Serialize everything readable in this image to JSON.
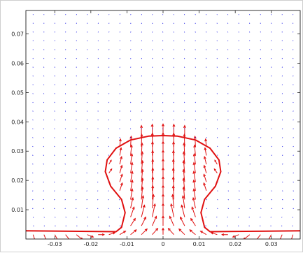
{
  "chart_data": {
    "type": "vector-field",
    "title": "",
    "xlabel": "",
    "ylabel": "",
    "xlim": [
      -0.038,
      0.038
    ],
    "ylim": [
      0,
      0.078
    ],
    "xticks": [
      -0.03,
      -0.02,
      -0.01,
      0,
      0.01,
      0.02,
      0.03
    ],
    "xtick_labels": [
      "-0.03",
      "-0.02",
      "-0.01",
      "0",
      "0.01",
      "0.02",
      "0.03"
    ],
    "yticks": [
      0.01,
      0.02,
      0.03,
      0.04,
      0.05,
      0.06,
      0.07
    ],
    "ytick_labels": [
      "0.01",
      "0.02",
      "0.03",
      "0.04",
      "0.05",
      "0.06",
      "0.07"
    ],
    "grid": false,
    "colors": {
      "outer_field": "#1414e6",
      "inner_field": "#e01010",
      "interface": "#e01010",
      "axes": "#000000"
    },
    "interface_curve": {
      "x": [
        -0.038,
        -0.02,
        -0.013,
        -0.0115,
        -0.0105,
        -0.0115,
        -0.0145,
        -0.016,
        -0.0155,
        -0.013,
        -0.009,
        -0.004,
        0,
        0.004,
        0.009,
        0.013,
        0.0155,
        0.016,
        0.0145,
        0.0115,
        0.0105,
        0.0115,
        0.013,
        0.02,
        0.038
      ],
      "y": [
        0.0028,
        0.0026,
        0.0025,
        0.004,
        0.009,
        0.0135,
        0.018,
        0.023,
        0.027,
        0.031,
        0.0338,
        0.0351,
        0.0353,
        0.0351,
        0.0338,
        0.031,
        0.027,
        0.023,
        0.018,
        0.0135,
        0.009,
        0.004,
        0.0025,
        0.0026,
        0.0028
      ]
    },
    "field_grid": {
      "x_start": -0.036,
      "x_step": 0.003,
      "nx": 25,
      "y_start": 0.0015,
      "y_step": 0.003,
      "ny": 26
    }
  }
}
